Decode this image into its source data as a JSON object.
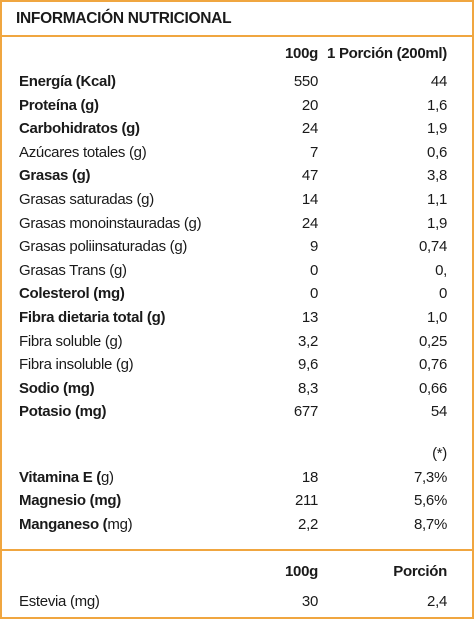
{
  "title": "INFORMACIÓN NUTRICIONAL",
  "header": {
    "col1": "100g",
    "col2": "1 Porción (200ml)"
  },
  "rows": [
    {
      "label": "Energía (Kcal)",
      "v100": "550",
      "vport": "44",
      "bold": true
    },
    {
      "label": "Proteína (g)",
      "v100": "20",
      "vport": "1,6",
      "bold": true
    },
    {
      "label": "Carbohidratos (g)",
      "v100": "24",
      "vport": "1,9",
      "bold": true
    },
    {
      "label": "Azúcares totales (g)",
      "v100": "7",
      "vport": "0,6",
      "bold": false
    },
    {
      "label": "Grasas (g)",
      "v100": "47",
      "vport": "3,8",
      "bold": true
    },
    {
      "label": "Grasas saturadas (g)",
      "v100": "14",
      "vport": "1,1",
      "bold": false
    },
    {
      "label": "Grasas monoinstauradas (g)",
      "v100": "24",
      "vport": "1,9",
      "bold": false
    },
    {
      "label": "Grasas poliinsaturadas (g)",
      "v100": "9",
      "vport": "0,74",
      "bold": false
    },
    {
      "label": "Grasas Trans (g)",
      "v100": "0",
      "vport": "0,",
      "bold": false
    },
    {
      "label": "Colesterol (mg)",
      "v100": "0",
      "vport": "0",
      "bold": true
    },
    {
      "label": "Fibra dietaria total (g)",
      "v100": "13",
      "vport": "1,0",
      "bold": true
    },
    {
      "label": "Fibra soluble (g)",
      "v100": "3,2",
      "vport": "0,25",
      "bold": false
    },
    {
      "label": "Fibra insoluble (g)",
      "v100": "9,6",
      "vport": "0,76",
      "bold": false
    },
    {
      "label": "Sodio (mg)",
      "v100": "8,3",
      "vport": "0,66",
      "bold": true
    },
    {
      "label": "Potasio (mg)",
      "v100": "677",
      "vport": "54",
      "bold": true
    }
  ],
  "footnote_mark": "(*)",
  "vitamins": [
    {
      "label_bold": "Vitamina E (",
      "label_rest": "g)",
      "v100": "18",
      "vport": "7,3%"
    },
    {
      "label_bold": "Magnesio (mg)",
      "label_rest": "",
      "v100": "211",
      "vport": "5,6%"
    },
    {
      "label_bold": "Manganeso (",
      "label_rest": "mg)",
      "v100": "2,2",
      "vport": "8,7%"
    }
  ],
  "sweetener_header": {
    "col1": "100g",
    "col2": "Porción"
  },
  "sweetener": {
    "label": "Estevia (mg)",
    "v100": "30",
    "vport": "2,4"
  }
}
